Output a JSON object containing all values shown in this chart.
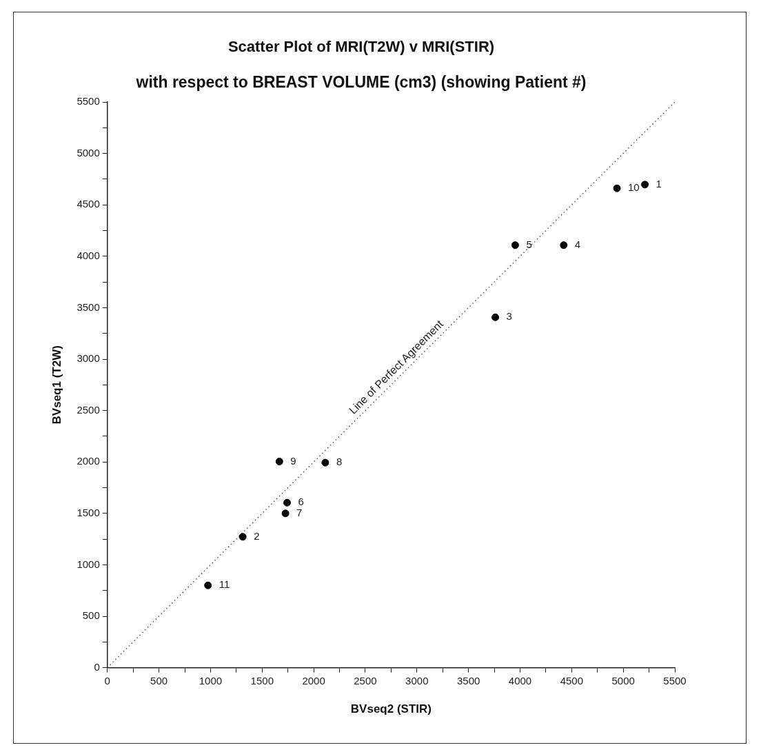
{
  "chart_data": {
    "type": "scatter",
    "title": "Scatter Plot of MRI(T2W) v MRI(STIR)",
    "subtitle": "with respect to BREAST VOLUME (cm3) (showing Patient #)",
    "xlabel": "BVseq2 (STIR)",
    "ylabel": "BVseq1 (T2W)",
    "series": [
      {
        "color": "#000000",
        "x": [
          5210,
          1312,
          3760,
          4423,
          3953,
          1742,
          1726,
          2112,
          1667,
          4939,
          975
        ],
        "values": [
          4697,
          1272,
          3407,
          4108,
          4108,
          1604,
          1500,
          1993,
          2004,
          4661,
          800
        ],
        "marker": "circle"
      },
      {
        "type": "line",
        "name": "Line of Perfect Agreement",
        "color": "#555555",
        "x": [
          0,
          5500
        ],
        "values": [
          0,
          5500
        ],
        "marker": "none",
        "line_style": "dotted"
      }
    ],
    "annotations": [
      {
        "text": "1",
        "x": 5210,
        "y": 4697
      },
      {
        "text": "2",
        "x": 1312,
        "y": 1272
      },
      {
        "text": "3",
        "x": 3760,
        "y": 3407
      },
      {
        "text": "4",
        "x": 4423,
        "y": 4108
      },
      {
        "text": "5",
        "x": 3953,
        "y": 4108
      },
      {
        "text": "6",
        "x": 1742,
        "y": 1604
      },
      {
        "text": "7",
        "x": 1726,
        "y": 1500
      },
      {
        "text": "8",
        "x": 2112,
        "y": 1993
      },
      {
        "text": "9",
        "x": 1667,
        "y": 2004
      },
      {
        "text": "10",
        "x": 4939,
        "y": 4661
      },
      {
        "text": "11",
        "x": 975,
        "y": 800
      }
    ],
    "xlim": [
      0,
      5500
    ],
    "ylim": [
      0,
      5500
    ],
    "xticks": [
      0,
      {
        "value": 250,
        "label": null
      },
      500,
      {
        "value": 750,
        "label": null
      },
      1000,
      {
        "value": 1250,
        "label": null
      },
      1500,
      {
        "value": 1750,
        "label": null
      },
      2000,
      {
        "value": 2250,
        "label": null
      },
      2500,
      {
        "value": 2750,
        "label": null
      },
      3000,
      {
        "value": 3250,
        "label": null
      },
      3500,
      {
        "value": 3750,
        "label": null
      },
      4000,
      {
        "value": 4250,
        "label": null
      },
      4500,
      {
        "value": 4750,
        "label": null
      },
      5000,
      {
        "value": 5250,
        "label": null
      },
      5500
    ],
    "yticks": [
      0,
      {
        "value": 250,
        "label": null
      },
      500,
      {
        "value": 750,
        "label": null
      },
      1000,
      {
        "value": 1250,
        "label": null
      },
      1500,
      {
        "value": 1750,
        "label": null
      },
      2000,
      {
        "value": 2250,
        "label": null
      },
      2500,
      {
        "value": 2750,
        "label": null
      },
      3000,
      {
        "value": 3250,
        "label": null
      },
      3500,
      {
        "value": 3750,
        "label": null
      },
      4000,
      {
        "value": 4250,
        "label": null
      },
      4500,
      {
        "value": 4750,
        "label": null
      },
      5000,
      {
        "value": 5250,
        "label": null
      },
      5500
    ],
    "grid": false,
    "legend": false
  }
}
